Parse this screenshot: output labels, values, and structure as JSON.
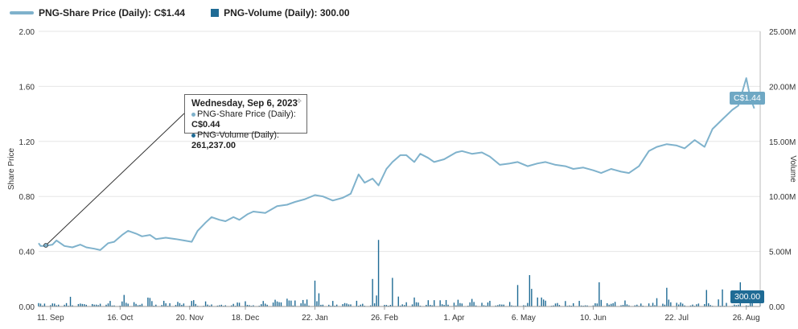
{
  "legend": {
    "price_label": "PNG-Share Price (Daily): C$1.44",
    "volume_label": "PNG-Volume (Daily): 300.00"
  },
  "tooltip": {
    "title": "Wednesday, Sep 6, 2023",
    "price_label": "PNG-Share Price (Daily): ",
    "price_value": "C$0.44",
    "volume_label": "PNG-Volume (Daily): ",
    "volume_value": "261,237.00"
  },
  "badges": {
    "price": "C$1.44",
    "volume": "300.00"
  },
  "colors": {
    "price_line": "#7fb2cc",
    "volume_bar": "#1f6b95",
    "grid": "#e6e6e6"
  },
  "chart_data": {
    "type": "line",
    "y_left": {
      "label": "Share Price",
      "min": 0,
      "max": 2.0,
      "ticks": [
        "0.00",
        "0.40",
        "0.80",
        "1.20",
        "1.60",
        "2.00"
      ]
    },
    "y_right": {
      "label": "Volume",
      "min": 0,
      "max": 25000000,
      "ticks": [
        "0.00",
        "5.00M",
        "10.00M",
        "15.00M",
        "20.00M",
        "25.00M"
      ]
    },
    "x_start": "2023-09-05",
    "x_end": "2024-09-02",
    "x_ticks": [
      {
        "date": "2023-09-11",
        "label": "11. Sep"
      },
      {
        "date": "2023-10-16",
        "label": "16. Oct"
      },
      {
        "date": "2023-11-20",
        "label": "20. Nov"
      },
      {
        "date": "2023-12-18",
        "label": "18. Dec"
      },
      {
        "date": "2024-01-22",
        "label": "22. Jan"
      },
      {
        "date": "2024-02-26",
        "label": "26. Feb"
      },
      {
        "date": "2024-04-01",
        "label": "1. Apr"
      },
      {
        "date": "2024-05-06",
        "label": "6. May"
      },
      {
        "date": "2024-06-10",
        "label": "10. Jun"
      },
      {
        "date": "2024-07-22",
        "label": "22. Jul"
      },
      {
        "date": "2024-08-26",
        "label": "26. Aug"
      }
    ],
    "grid": true,
    "legend_position": "top-left",
    "series": [
      {
        "name": "PNG-Share Price (Daily)",
        "type": "line",
        "points": [
          [
            "2023-09-05",
            0.46
          ],
          [
            "2023-09-06",
            0.44
          ],
          [
            "2023-09-08",
            0.44
          ],
          [
            "2023-09-12",
            0.45
          ],
          [
            "2023-09-14",
            0.48
          ],
          [
            "2023-09-18",
            0.44
          ],
          [
            "2023-09-22",
            0.43
          ],
          [
            "2023-09-26",
            0.45
          ],
          [
            "2023-09-29",
            0.43
          ],
          [
            "2023-10-03",
            0.42
          ],
          [
            "2023-10-06",
            0.41
          ],
          [
            "2023-10-10",
            0.46
          ],
          [
            "2023-10-13",
            0.47
          ],
          [
            "2023-10-17",
            0.52
          ],
          [
            "2023-10-20",
            0.55
          ],
          [
            "2023-10-24",
            0.53
          ],
          [
            "2023-10-27",
            0.51
          ],
          [
            "2023-10-31",
            0.52
          ],
          [
            "2023-11-03",
            0.49
          ],
          [
            "2023-11-08",
            0.5
          ],
          [
            "2023-11-13",
            0.49
          ],
          [
            "2023-11-17",
            0.48
          ],
          [
            "2023-11-21",
            0.47
          ],
          [
            "2023-11-24",
            0.55
          ],
          [
            "2023-11-28",
            0.61
          ],
          [
            "2023-12-01",
            0.65
          ],
          [
            "2023-12-05",
            0.63
          ],
          [
            "2023-12-08",
            0.62
          ],
          [
            "2023-12-12",
            0.65
          ],
          [
            "2023-12-15",
            0.63
          ],
          [
            "2023-12-19",
            0.67
          ],
          [
            "2023-12-22",
            0.69
          ],
          [
            "2023-12-28",
            0.68
          ],
          [
            "2024-01-03",
            0.73
          ],
          [
            "2024-01-08",
            0.74
          ],
          [
            "2024-01-12",
            0.76
          ],
          [
            "2024-01-17",
            0.78
          ],
          [
            "2024-01-22",
            0.81
          ],
          [
            "2024-01-26",
            0.8
          ],
          [
            "2024-01-31",
            0.77
          ],
          [
            "2024-02-05",
            0.79
          ],
          [
            "2024-02-09",
            0.82
          ],
          [
            "2024-02-13",
            0.96
          ],
          [
            "2024-02-16",
            0.9
          ],
          [
            "2024-02-20",
            0.93
          ],
          [
            "2024-02-23",
            0.88
          ],
          [
            "2024-02-27",
            1.0
          ],
          [
            "2024-03-01",
            1.05
          ],
          [
            "2024-03-05",
            1.1
          ],
          [
            "2024-03-08",
            1.1
          ],
          [
            "2024-03-12",
            1.05
          ],
          [
            "2024-03-15",
            1.11
          ],
          [
            "2024-03-19",
            1.08
          ],
          [
            "2024-03-22",
            1.05
          ],
          [
            "2024-03-27",
            1.07
          ],
          [
            "2024-04-02",
            1.12
          ],
          [
            "2024-04-05",
            1.13
          ],
          [
            "2024-04-10",
            1.11
          ],
          [
            "2024-04-15",
            1.12
          ],
          [
            "2024-04-19",
            1.09
          ],
          [
            "2024-04-24",
            1.03
          ],
          [
            "2024-04-29",
            1.04
          ],
          [
            "2024-05-03",
            1.05
          ],
          [
            "2024-05-08",
            1.02
          ],
          [
            "2024-05-13",
            1.04
          ],
          [
            "2024-05-17",
            1.05
          ],
          [
            "2024-05-22",
            1.03
          ],
          [
            "2024-05-27",
            1.02
          ],
          [
            "2024-05-31",
            1.0
          ],
          [
            "2024-06-05",
            1.01
          ],
          [
            "2024-06-10",
            0.99
          ],
          [
            "2024-06-14",
            0.97
          ],
          [
            "2024-06-19",
            1.0
          ],
          [
            "2024-06-24",
            0.98
          ],
          [
            "2024-06-28",
            0.97
          ],
          [
            "2024-07-03",
            1.02
          ],
          [
            "2024-07-08",
            1.13
          ],
          [
            "2024-07-12",
            1.16
          ],
          [
            "2024-07-17",
            1.18
          ],
          [
            "2024-07-22",
            1.17
          ],
          [
            "2024-07-26",
            1.15
          ],
          [
            "2024-07-31",
            1.21
          ],
          [
            "2024-08-05",
            1.16
          ],
          [
            "2024-08-09",
            1.29
          ],
          [
            "2024-08-14",
            1.36
          ],
          [
            "2024-08-19",
            1.43
          ],
          [
            "2024-08-22",
            1.46
          ],
          [
            "2024-08-26",
            1.66
          ],
          [
            "2024-08-28",
            1.52
          ],
          [
            "2024-08-30",
            1.44
          ]
        ]
      },
      {
        "name": "PNG-Volume (Daily)",
        "type": "bar",
        "points": [
          [
            "2023-09-06",
            261237
          ],
          [
            "2023-10-18",
            1050000
          ],
          [
            "2024-01-22",
            2350000
          ],
          [
            "2024-01-24",
            1200000
          ],
          [
            "2024-02-20",
            2500000
          ],
          [
            "2024-02-22",
            1000000
          ],
          [
            "2024-02-23",
            6050000
          ],
          [
            "2024-03-01",
            2600000
          ],
          [
            "2024-03-04",
            900000
          ],
          [
            "2024-05-03",
            1950000
          ],
          [
            "2024-05-09",
            2850000
          ],
          [
            "2024-05-10",
            1600000
          ],
          [
            "2024-06-13",
            2200000
          ],
          [
            "2024-07-17",
            1700000
          ],
          [
            "2024-08-06",
            1500000
          ],
          [
            "2024-08-14",
            1550000
          ],
          [
            "2024-08-23",
            2200000
          ],
          [
            "2024-08-30",
            300
          ]
        ],
        "baseline_volume_range": "typically 0.1M–1.0M per day"
      }
    ]
  }
}
